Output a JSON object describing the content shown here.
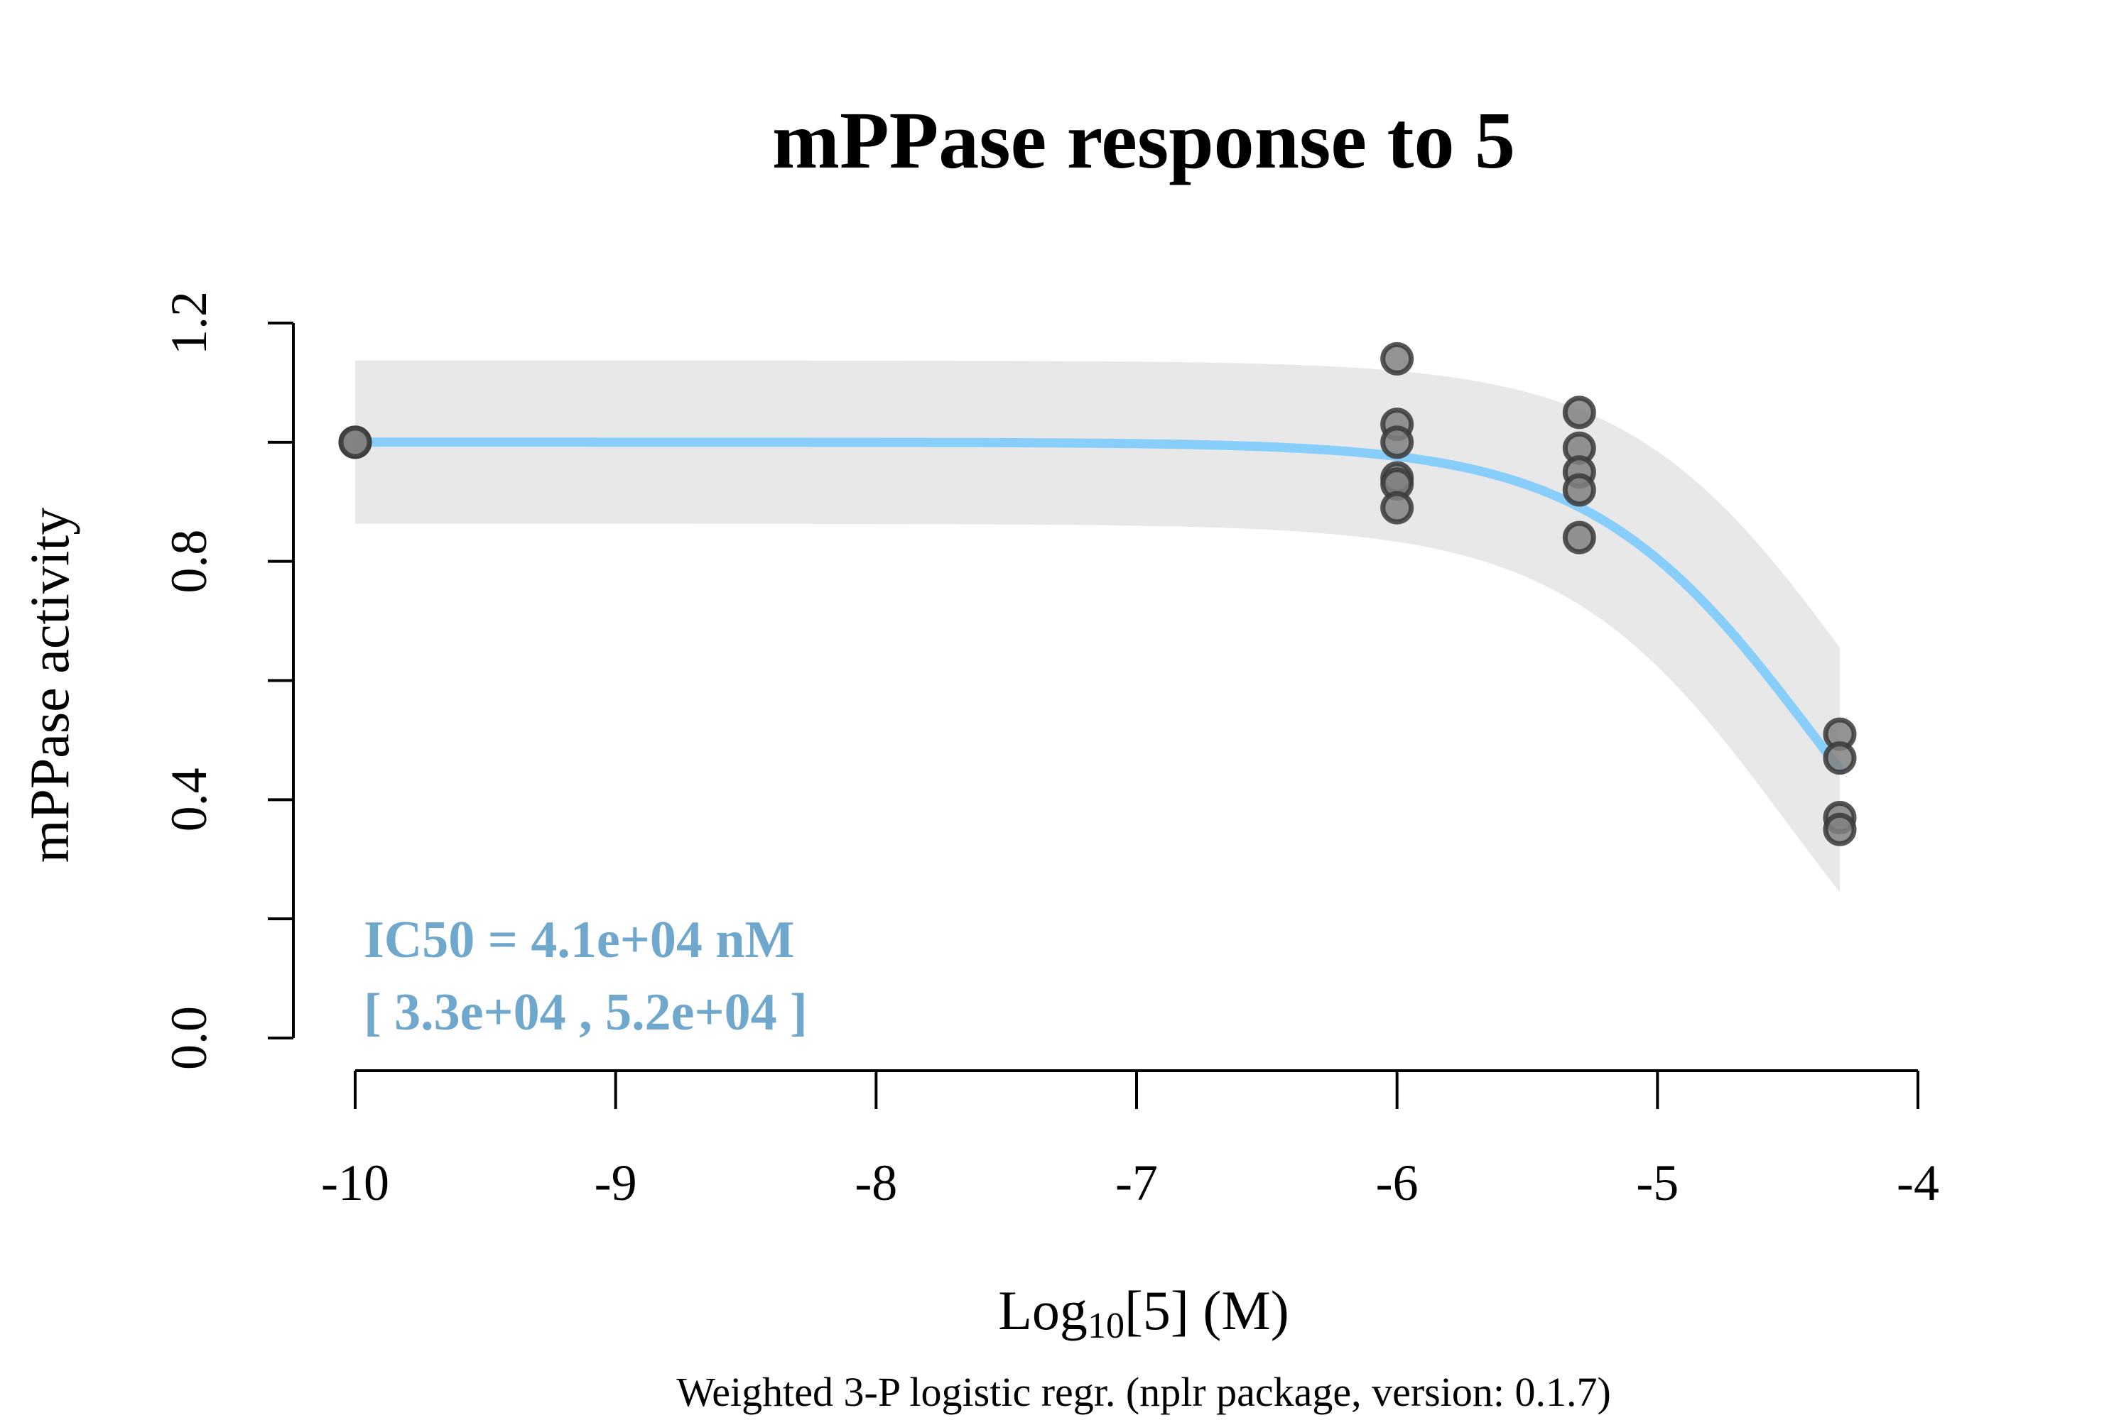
{
  "chart_data": {
    "type": "scatter",
    "title": "mPPase response to 5",
    "xlabel": {
      "prefix": "Log",
      "subscript": "10",
      "suffix": "[5] (M)"
    },
    "ylabel": "mPPase activity",
    "subtitle": "Weighted 3-P logistic regr. (nplr package, version: 0.1.7)",
    "xlim": [
      -10,
      -4
    ],
    "ylim": [
      0,
      1.2
    ],
    "x_ticks": [
      -10,
      -9,
      -8,
      -7,
      -6,
      -5,
      -4
    ],
    "x_tick_labels": [
      "-10",
      "-9",
      "-8",
      "-7",
      "-6",
      "-5",
      "-4"
    ],
    "y_ticks": [
      0,
      0.2,
      0.4,
      0.6,
      0.8,
      1.0,
      1.2
    ],
    "y_tick_labels": [
      "0.0",
      "",
      "0.4",
      "",
      "0.8",
      "",
      "1.2"
    ],
    "points": [
      {
        "x": -10,
        "y": 1.0
      },
      {
        "x": -10,
        "y": 1.0
      },
      {
        "x": -6,
        "y": 1.14
      },
      {
        "x": -6,
        "y": 1.03
      },
      {
        "x": -6,
        "y": 1.0
      },
      {
        "x": -6,
        "y": 0.94
      },
      {
        "x": -6,
        "y": 0.93
      },
      {
        "x": -6,
        "y": 0.89
      },
      {
        "x": -5.3,
        "y": 1.05
      },
      {
        "x": -5.3,
        "y": 0.99
      },
      {
        "x": -5.3,
        "y": 0.95
      },
      {
        "x": -5.3,
        "y": 0.92
      },
      {
        "x": -5.3,
        "y": 0.84
      },
      {
        "x": -4.3,
        "y": 0.51
      },
      {
        "x": -4.3,
        "y": 0.47
      },
      {
        "x": -4.3,
        "y": 0.37
      },
      {
        "x": -4.3,
        "y": 0.35
      }
    ],
    "fit": {
      "model": "3-P logistic",
      "top": 1.0,
      "bottom": 0.0,
      "log_ic50": -4.387,
      "slope": 1.0,
      "ci_halfwidth": 0.137,
      "x_range": [
        -10,
        -4.3
      ]
    },
    "annotation": {
      "line1": "IC50 = 4.1e+04 nM",
      "line2": "[ 3.3e+04 , 5.2e+04 ]"
    },
    "colors": {
      "fit_line": "#87CEFA",
      "ci_band": "#E8E8E8",
      "point_fill": "#808080",
      "point_edge": "#3a3a3a",
      "annotation_text": "#6fa8cc"
    },
    "grid": false,
    "legend": "none"
  }
}
